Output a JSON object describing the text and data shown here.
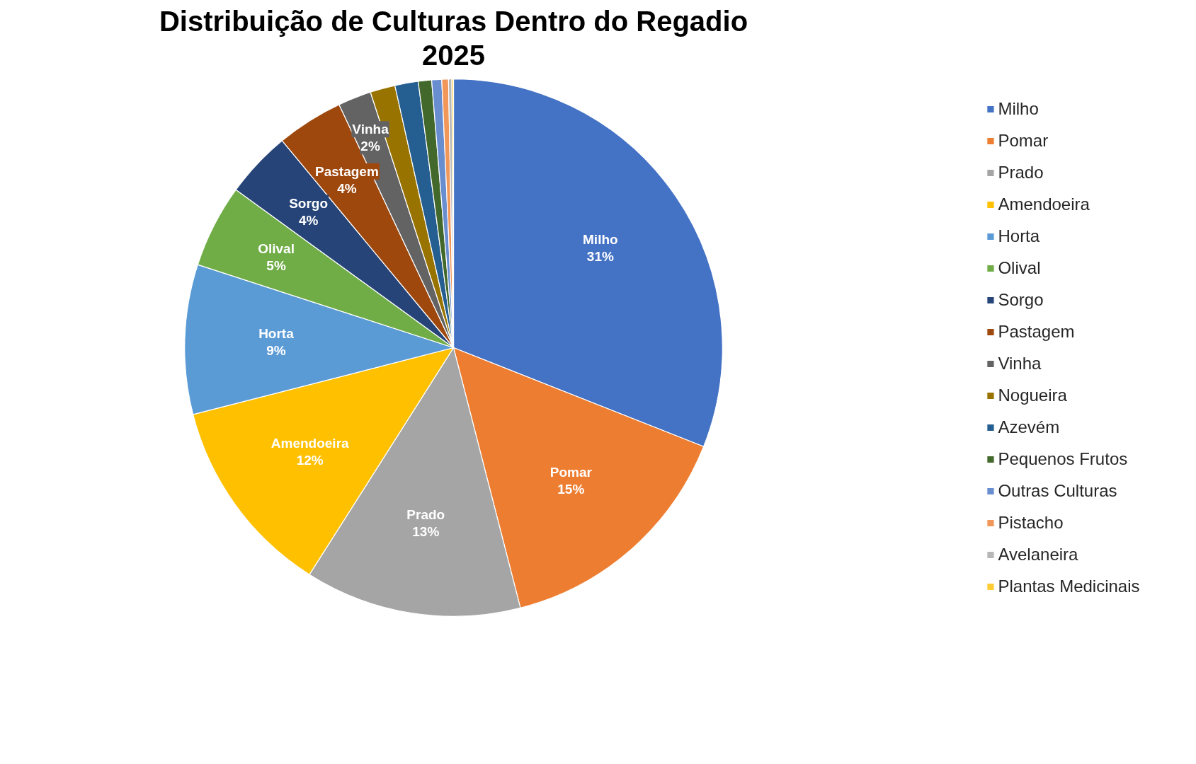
{
  "chart_data": {
    "type": "pie",
    "title": "Distribuição de Culturas Dentro do Regadio",
    "subtitle": "2025",
    "categories": [
      "Milho",
      "Pomar",
      "Prado",
      "Amendoeira",
      "Horta",
      "Olival",
      "Sorgo",
      "Pastagem",
      "Vinha",
      "Nogueira",
      "Azevém",
      "Pequenos Frutos",
      "Outras Culturas",
      "Pistacho",
      "Avelaneira",
      "Plantas Medicinais"
    ],
    "values": [
      31,
      15,
      13,
      12,
      9,
      5,
      4,
      4,
      2,
      1.5,
      1.4,
      0.8,
      0.6,
      0.4,
      0.2,
      0.1
    ],
    "colors": [
      "#4472c4",
      "#ed7d31",
      "#a5a5a5",
      "#ffc000",
      "#5b9bd5",
      "#70ad47",
      "#264478",
      "#9e480e",
      "#636363",
      "#997300",
      "#255e91",
      "#43682b",
      "#698ed0",
      "#f1975a",
      "#b7b7b7",
      "#ffcd33"
    ],
    "value_labels": [
      "31%",
      "15%",
      "13%",
      "12%",
      "9%",
      "5%",
      "4%",
      "4%",
      "2%",
      null,
      null,
      null,
      null,
      null,
      null,
      null
    ],
    "legend": "right"
  }
}
